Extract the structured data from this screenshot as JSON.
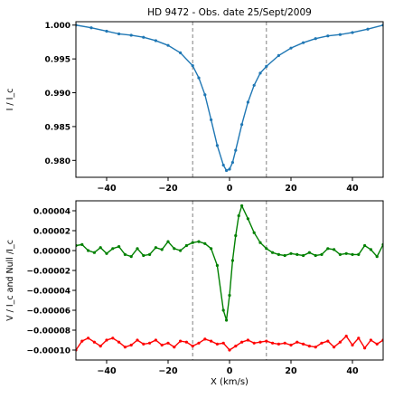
{
  "figure": {
    "title": "HD 9472 -  Obs. date  25/Sept/2009"
  },
  "chart_data": [
    {
      "type": "line",
      "panel": "top",
      "title": "HD 9472 -  Obs. date  25/Sept/2009",
      "xlabel": "",
      "ylabel": "I / I_c",
      "xlim": [
        -50,
        50
      ],
      "ylim": [
        0.9775,
        1.0005
      ],
      "xticks": [
        -40,
        -20,
        0,
        20,
        40
      ],
      "xtick_labels": [
        "−40",
        "−20",
        "0",
        "20",
        "40"
      ],
      "yticks": [
        0.98,
        0.985,
        0.99,
        0.995,
        1.0
      ],
      "ytick_labels": [
        "0.980",
        "0.985",
        "0.990",
        "0.995",
        "1.000"
      ],
      "vlines": [
        -12,
        12
      ],
      "series": [
        {
          "color": "#1f77b4",
          "x": [
            -50,
            -45,
            -40,
            -36,
            -32,
            -28,
            -24,
            -20,
            -16,
            -12,
            -10,
            -8,
            -6,
            -4,
            -2,
            -1,
            0,
            1,
            2,
            4,
            6,
            8,
            10,
            12,
            16,
            20,
            24,
            28,
            32,
            36,
            40,
            45,
            50
          ],
          "y": [
            1.0,
            0.9996,
            0.9991,
            0.9987,
            0.9985,
            0.9982,
            0.9977,
            0.997,
            0.9959,
            0.994,
            0.9922,
            0.9897,
            0.986,
            0.9822,
            0.9793,
            0.9785,
            0.9787,
            0.9797,
            0.9815,
            0.9853,
            0.9886,
            0.9911,
            0.9929,
            0.9939,
            0.9955,
            0.9966,
            0.9974,
            0.998,
            0.9984,
            0.9986,
            0.9989,
            0.9994,
            1.0
          ]
        }
      ]
    },
    {
      "type": "line",
      "panel": "bottom",
      "xlabel": "X  (km/s)",
      "ylabel": "V / I_c  and  Null /I_c",
      "xlim": [
        -50,
        50
      ],
      "ylim": [
        -0.00011,
        5e-05
      ],
      "xticks": [
        -40,
        -20,
        0,
        20,
        40
      ],
      "xtick_labels": [
        "−40",
        "−20",
        "0",
        "20",
        "40"
      ],
      "yticks": [
        4e-05,
        2e-05,
        0.0,
        -2e-05,
        -4e-05,
        -6e-05,
        -8e-05,
        -0.0001
      ],
      "ytick_labels": [
        "0.00004",
        "0.00002",
        "0.00000",
        "−0.00002",
        "−0.00004",
        "−0.00006",
        "−0.00008",
        "−0.00010"
      ],
      "vlines": [
        -12,
        12
      ],
      "series": [
        {
          "color": "#008000",
          "x": [
            -50,
            -48,
            -46,
            -44,
            -42,
            -40,
            -38,
            -36,
            -34,
            -32,
            -30,
            -28,
            -26,
            -24,
            -22,
            -20,
            -18,
            -16,
            -14,
            -12,
            -10,
            -8,
            -6,
            -4,
            -2,
            -1,
            0,
            1,
            2,
            3,
            4,
            6,
            8,
            10,
            12,
            14,
            16,
            18,
            20,
            22,
            24,
            26,
            28,
            30,
            32,
            34,
            36,
            38,
            40,
            42,
            44,
            46,
            48,
            50
          ],
          "y": [
            5e-06,
            6e-06,
            0.0,
            -2e-06,
            3e-06,
            -3e-06,
            2e-06,
            4e-06,
            -4e-06,
            -6e-06,
            2e-06,
            -5e-06,
            -4e-06,
            3e-06,
            1e-06,
            9e-06,
            2e-06,
            0.0,
            5e-06,
            8e-06,
            9e-06,
            7e-06,
            2e-06,
            -1.5e-05,
            -6e-05,
            -7e-05,
            -4.5e-05,
            -1e-05,
            1.5e-05,
            3.5e-05,
            4.5e-05,
            3.2e-05,
            1.8e-05,
            8e-06,
            2e-06,
            -2e-06,
            -4e-06,
            -5e-06,
            -3e-06,
            -4e-06,
            -5e-06,
            -2e-06,
            -5e-06,
            -4e-06,
            2e-06,
            1e-06,
            -4e-06,
            -3e-06,
            -4e-06,
            -4e-06,
            5e-06,
            1e-06,
            -6e-06,
            6e-06
          ]
        },
        {
          "color": "#ff0000",
          "x": [
            -50,
            -48,
            -46,
            -44,
            -42,
            -40,
            -38,
            -36,
            -34,
            -32,
            -30,
            -28,
            -26,
            -24,
            -22,
            -20,
            -18,
            -16,
            -14,
            -12,
            -10,
            -8,
            -6,
            -4,
            -2,
            0,
            2,
            4,
            6,
            8,
            10,
            12,
            14,
            16,
            18,
            20,
            22,
            24,
            26,
            28,
            30,
            32,
            34,
            36,
            38,
            40,
            42,
            44,
            46,
            48,
            50
          ],
          "y": [
            -0.0001,
            -9.1e-05,
            -8.8e-05,
            -9.2e-05,
            -9.6e-05,
            -9e-05,
            -8.8e-05,
            -9.2e-05,
            -9.7e-05,
            -9.5e-05,
            -9e-05,
            -9.4e-05,
            -9.3e-05,
            -9e-05,
            -9.5e-05,
            -9.3e-05,
            -9.7e-05,
            -9.1e-05,
            -9.2e-05,
            -9.6e-05,
            -9.3e-05,
            -8.9e-05,
            -9.1e-05,
            -9.4e-05,
            -9.3e-05,
            -0.0001,
            -9.6e-05,
            -9.2e-05,
            -9e-05,
            -9.3e-05,
            -9.2e-05,
            -9.1e-05,
            -9.3e-05,
            -9.4e-05,
            -9.3e-05,
            -9.5e-05,
            -9.2e-05,
            -9.4e-05,
            -9.6e-05,
            -9.7e-05,
            -9.3e-05,
            -9.1e-05,
            -9.7e-05,
            -9.2e-05,
            -8.6e-05,
            -9.5e-05,
            -8.8e-05,
            -9.8e-05,
            -9e-05,
            -9.4e-05,
            -9e-05
          ]
        }
      ]
    }
  ]
}
